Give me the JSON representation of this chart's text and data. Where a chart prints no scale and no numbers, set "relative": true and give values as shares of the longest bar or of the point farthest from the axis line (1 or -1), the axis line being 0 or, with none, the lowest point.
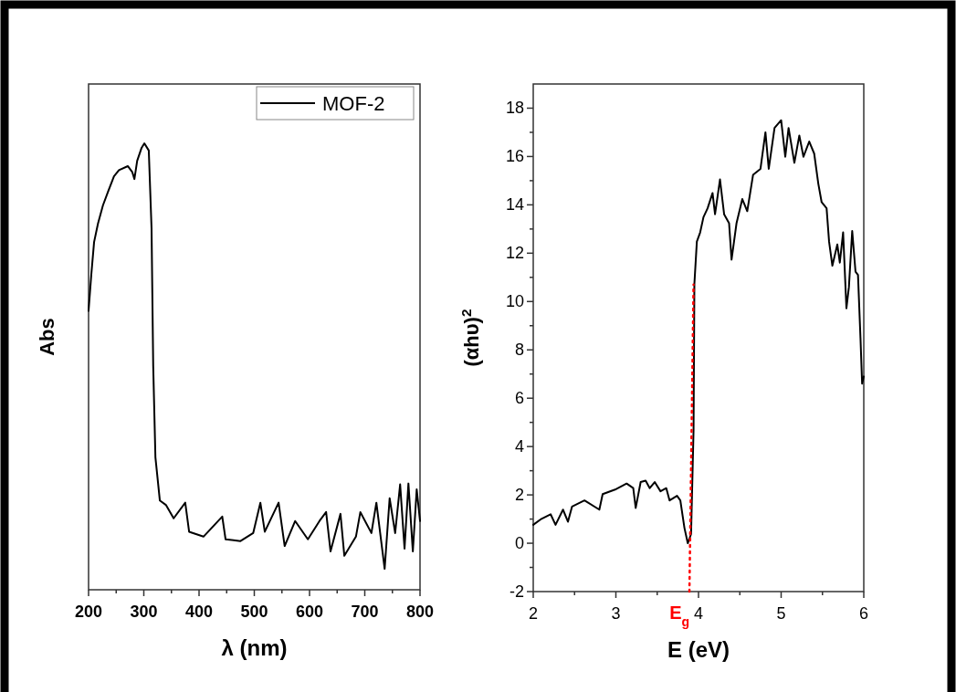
{
  "chart_data": [
    {
      "type": "line",
      "xlabel": "λ (nm)",
      "ylabel": "Abs",
      "relative": true,
      "legend": "top right",
      "xlim": [
        200,
        800
      ],
      "xticks": [
        200,
        {
          "value": 250,
          "label": null
        },
        300,
        {
          "value": 350,
          "label": null
        },
        400,
        {
          "value": 450,
          "label": null
        },
        500,
        {
          "value": 550,
          "label": null
        },
        600,
        {
          "value": 650,
          "label": null
        },
        700,
        {
          "value": 750,
          "label": null
        },
        800
      ],
      "series": [
        {
          "name": "MOF-2",
          "color": "#000000",
          "x": [
            200,
            205,
            210,
            217,
            226,
            235,
            246,
            255,
            271,
            279,
            283,
            288,
            296,
            301,
            309,
            314,
            317,
            321,
            329,
            340,
            354,
            375,
            382,
            408,
            442,
            448,
            475,
            498,
            511,
            519,
            544,
            555,
            574,
            597,
            618,
            630,
            638,
            656,
            663,
            684,
            692,
            712,
            721,
            736,
            745,
            755,
            764,
            772,
            779,
            787,
            794,
            800
          ],
          "values": [
            0.625,
            0.707,
            0.779,
            0.82,
            0.861,
            0.891,
            0.926,
            0.94,
            0.949,
            0.936,
            0.92,
            0.961,
            0.99,
            1,
            0.984,
            0.81,
            0.502,
            0.297,
            0.2,
            0.19,
            0.16,
            0.195,
            0.13,
            0.119,
            0.164,
            0.113,
            0.109,
            0.127,
            0.195,
            0.13,
            0.195,
            0.098,
            0.154,
            0.113,
            0.154,
            0.174,
            0.086,
            0.17,
            0.076,
            0.119,
            0.174,
            0.127,
            0.195,
            0.047,
            0.205,
            0.127,
            0.236,
            0.092,
            0.238,
            0.086,
            0.225,
            0.154
          ]
        }
      ]
    },
    {
      "type": "line",
      "xlabel": "E (eV)",
      "ylabel": "(αhυ)$^{2}$",
      "xlim": [
        2,
        6
      ],
      "ylim": [
        -2,
        19
      ],
      "xticks": [
        2,
        {
          "value": 2.5,
          "label": null
        },
        3,
        {
          "value": 3.5,
          "label": null
        },
        4,
        {
          "value": 4.5,
          "label": null
        },
        5,
        {
          "value": 5.5,
          "label": null
        },
        6
      ],
      "yticks": [
        -2,
        {
          "value": -1,
          "label": null
        },
        0,
        {
          "value": 1,
          "label": null
        },
        2,
        {
          "value": 3,
          "label": null
        },
        4,
        {
          "value": 5,
          "label": null
        },
        6,
        {
          "value": 7,
          "label": null
        },
        8,
        {
          "value": 9,
          "label": null
        },
        10,
        {
          "value": 11,
          "label": null
        },
        12,
        {
          "value": 13,
          "label": null
        },
        14,
        {
          "value": 15,
          "label": null
        },
        16,
        {
          "value": 17,
          "label": null
        },
        18
      ],
      "annotations": [
        {
          "text": "E$_{g}$",
          "x": 3.89,
          "y": -2
        }
      ],
      "series": [
        {
          "color": "#000000",
          "x": [
            2.0,
            2.1,
            2.21,
            2.27,
            2.36,
            2.42,
            2.47,
            2.62,
            2.8,
            2.84,
            2.99,
            3.13,
            3.21,
            3.24,
            3.3,
            3.36,
            3.41,
            3.47,
            3.54,
            3.61,
            3.65,
            3.74,
            3.78,
            3.83,
            3.87,
            3.91,
            3.94,
            3.95,
            3.98,
            4.02,
            4.06,
            4.11,
            4.17,
            4.2,
            4.26,
            4.31,
            4.37,
            4.4,
            4.46,
            4.53,
            4.59,
            4.66,
            4.75,
            4.81,
            4.85,
            4.92,
            5.0,
            5.05,
            5.09,
            5.16,
            5.22,
            5.27,
            5.34,
            5.4,
            5.45,
            5.49,
            5.55,
            5.58,
            5.62,
            5.68,
            5.71,
            5.75,
            5.79,
            5.82,
            5.86,
            5.9,
            5.93,
            5.96,
            5.98,
            6.0
          ],
          "values": [
            0.76,
            1.01,
            1.2,
            0.76,
            1.39,
            0.89,
            1.52,
            1.77,
            1.39,
            2.03,
            2.22,
            2.47,
            2.28,
            1.46,
            2.53,
            2.59,
            2.28,
            2.53,
            2.15,
            2.28,
            1.77,
            1.96,
            1.77,
            0.63,
            0,
            0.38,
            4.68,
            10.73,
            12.48,
            12.86,
            13.49,
            13.86,
            14.49,
            13.61,
            15.05,
            13.61,
            13.24,
            11.73,
            13.24,
            14.24,
            13.74,
            15.24,
            15.49,
            17.0,
            15.49,
            17.18,
            17.5,
            15.99,
            17.18,
            15.74,
            16.87,
            15.99,
            16.62,
            16.12,
            14.87,
            14.11,
            13.86,
            12.48,
            11.48,
            12.36,
            11.61,
            12.86,
            9.72,
            10.6,
            12.92,
            11.23,
            11.1,
            8.5,
            6.6,
            6.9
          ]
        },
        {
          "type": "line",
          "color": "#ff0000",
          "line_style": "dotted",
          "x": [
            3.89,
            3.94
          ],
          "values": [
            -2,
            10.7
          ]
        }
      ]
    }
  ]
}
